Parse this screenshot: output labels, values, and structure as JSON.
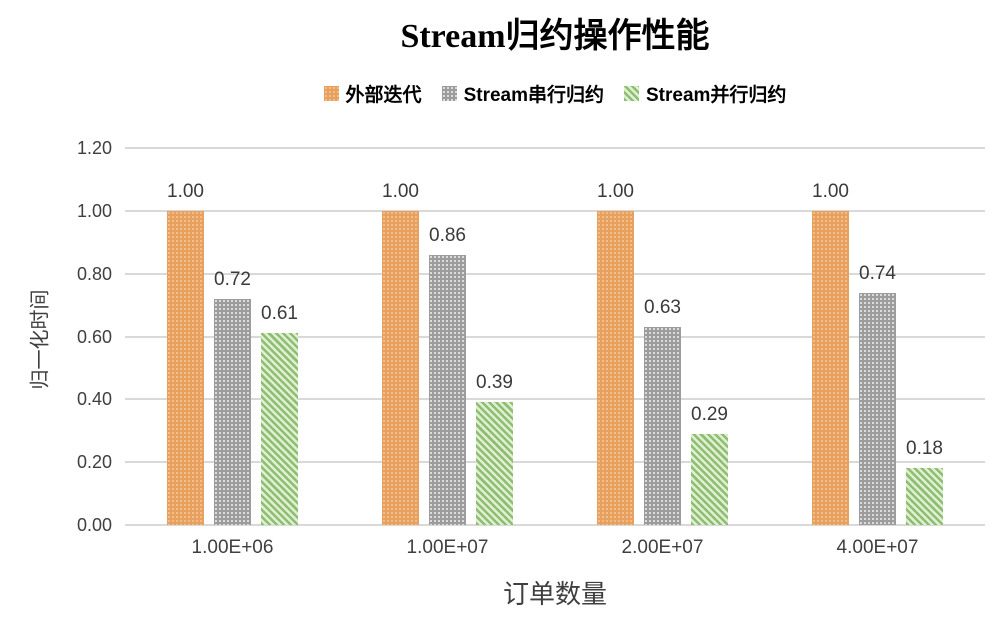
{
  "chart_data": {
    "type": "bar",
    "title": "Stream归约操作性能",
    "xlabel": "订单数量",
    "ylabel": "归一化时间",
    "categories": [
      "1.00E+06",
      "1.00E+07",
      "2.00E+07",
      "4.00E+07"
    ],
    "series": [
      {
        "name": "外部迭代",
        "values": [
          1.0,
          1.0,
          1.0,
          1.0
        ],
        "data_labels": [
          "1.00",
          "1.00",
          "1.00",
          "1.00"
        ],
        "pattern": "dots",
        "base_color": "#e8a05e",
        "accent_color": "#f4c89a"
      },
      {
        "name": "Stream串行归约",
        "values": [
          0.72,
          0.86,
          0.63,
          0.74
        ],
        "data_labels": [
          "0.72",
          "0.86",
          "0.63",
          "0.74"
        ],
        "pattern": "dots",
        "base_color": "#9c9c9c",
        "accent_color": "#f0f0f0"
      },
      {
        "name": "Stream并行归约",
        "values": [
          0.61,
          0.39,
          0.29,
          0.18
        ],
        "data_labels": [
          "0.61",
          "0.39",
          "0.29",
          "0.18"
        ],
        "pattern": "diagonal",
        "base_color": "#8fbe73",
        "accent_color": "#deefd2"
      }
    ],
    "ylim": [
      0,
      1.2
    ],
    "ytick_step": 0.2,
    "yticks": [
      "0.00",
      "0.20",
      "0.40",
      "0.60",
      "0.80",
      "1.00",
      "1.20"
    ],
    "grid": true,
    "legend_position": "top",
    "gridline_color": "#d9d9d9",
    "tick_text_color": "#3f3f3f"
  }
}
